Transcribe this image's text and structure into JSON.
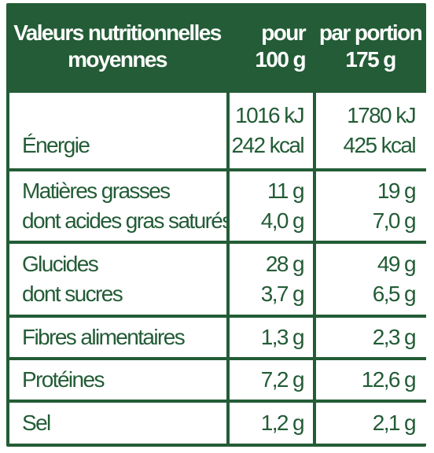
{
  "header": {
    "col1_line1": "Valeurs nutritionnelles",
    "col1_line2": "moyennes",
    "col2_line1": "pour",
    "col2_line2": "100 g",
    "col3_line1": "par portion",
    "col3_line2": "175 g"
  },
  "rows": [
    {
      "label": "Énergie",
      "per100_line1": "1016 kJ",
      "per100_line2": "242 kcal",
      "portion_line1": "1780 kJ",
      "portion_line2": "425 kcal"
    },
    {
      "label": "Matières grasses",
      "label2": "dont acides gras saturés",
      "per100_line1": "11 g",
      "per100_line2": "4,0 g",
      "portion_line1": "19 g",
      "portion_line2": "7,0 g"
    },
    {
      "label": "Glucides",
      "label2": "dont sucres",
      "per100_line1": "28 g",
      "per100_line2": "3,7 g",
      "portion_line1": "49 g",
      "portion_line2": "6,5 g"
    },
    {
      "label": "Fibres alimentaires",
      "per100": "1,3 g",
      "portion": "2,3 g"
    },
    {
      "label": "Protéines",
      "per100": "7,2 g",
      "portion": "12,6 g"
    },
    {
      "label": "Sel",
      "per100": "1,2 g",
      "portion": "2,1 g"
    }
  ],
  "colors": {
    "border": "#235c36",
    "text": "#235c36",
    "header_text": "#ffffff"
  }
}
